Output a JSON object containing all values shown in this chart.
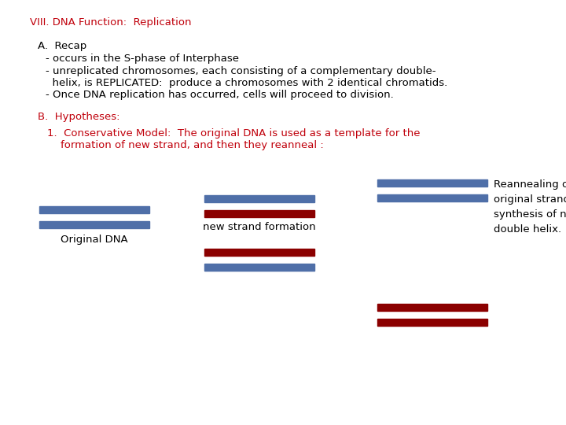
{
  "title": "VIII. DNA Function:  Replication",
  "title_color": "#c0000b",
  "bg_color": "#ffffff",
  "text_color_black": "#000000",
  "text_color_red": "#c0000b",
  "blue_color": "#4f6fa8",
  "red_color": "#8b0000",
  "section_a_header": "A.  Recap",
  "section_b_header": "B.  Hypotheses:",
  "section_1_line1": "1.  Conservative Model:  The original DNA is used as a template for the",
  "section_1_line2": "    formation of new strand, and then they reanneal :",
  "label_original": "Original DNA",
  "label_new": "new strand formation",
  "label_reanneal": "Reannealing of\noriginal strands and\nsynthesis of new\ndouble helix."
}
